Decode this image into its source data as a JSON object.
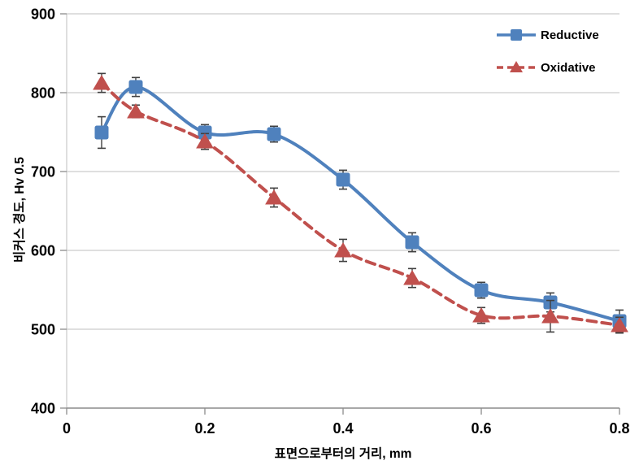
{
  "chart_data": {
    "type": "line",
    "title": "",
    "xlabel": "표면으로부터의 거리, mm",
    "ylabel": "비커스 경도, Hv 0.5",
    "xlim": [
      0,
      0.8
    ],
    "ylim": [
      400,
      900
    ],
    "x_tick_values": [
      0,
      0.2,
      0.4,
      0.6,
      0.8
    ],
    "x_tick_labels": [
      "0",
      "0.2",
      "0.4",
      "0.6",
      "0.8"
    ],
    "y_tick_values": [
      400,
      500,
      600,
      700,
      800,
      900
    ],
    "y_tick_labels": [
      "400",
      "500",
      "600",
      "700",
      "800",
      "900"
    ],
    "grid": "horizontal gridlines at every 100",
    "legend_position": "top-right inside plot",
    "x": [
      0.05,
      0.1,
      0.2,
      0.3,
      0.4,
      0.5,
      0.6,
      0.7,
      0.8
    ],
    "series": [
      {
        "name": "Reductive",
        "marker": "square",
        "line_style": "solid",
        "color": "#4f81bd",
        "values": [
          750,
          807,
          750,
          747,
          690,
          610,
          550,
          534,
          510
        ],
        "error": [
          20,
          12,
          10,
          10,
          12,
          12,
          10,
          12,
          14
        ]
      },
      {
        "name": "Oxidative",
        "marker": "triangle",
        "line_style": "dashed",
        "color": "#c0504d",
        "values": [
          812,
          776,
          738,
          667,
          600,
          565,
          518,
          517,
          505
        ],
        "error": [
          12,
          8,
          10,
          12,
          14,
          12,
          10,
          20,
          10
        ]
      }
    ],
    "colors": {
      "gridline": "#cccccc",
      "axis": "#8c8c8c",
      "error_bar": "#404040",
      "text": "#000000",
      "background": "#ffffff"
    }
  }
}
